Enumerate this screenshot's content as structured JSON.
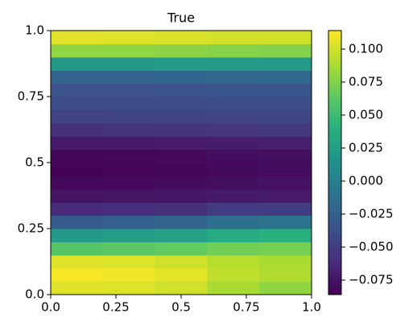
{
  "chart_data": {
    "type": "heatmap",
    "title": "True",
    "colormap": "viridis",
    "xedges": [
      0,
      0.2,
      0.4,
      0.6,
      0.8,
      1
    ],
    "yedges": [
      0,
      0.05,
      0.1,
      0.15,
      0.2,
      0.25,
      0.3,
      0.35,
      0.4,
      0.45,
      0.5,
      0.55,
      0.6,
      0.65,
      0.7,
      0.75,
      0.8,
      0.85,
      0.9,
      0.95,
      1
    ],
    "values": [
      [
        0.105,
        0.104,
        0.1,
        0.088,
        0.08
      ],
      [
        0.112,
        0.11,
        0.106,
        0.095,
        0.09
      ],
      [
        0.105,
        0.104,
        0.1,
        0.092,
        0.088
      ],
      [
        0.06,
        0.062,
        0.065,
        0.07,
        0.072
      ],
      [
        0.02,
        0.024,
        0.028,
        0.036,
        0.04
      ],
      [
        -0.03,
        -0.026,
        -0.022,
        -0.014,
        -0.01
      ],
      [
        -0.062,
        -0.06,
        -0.058,
        -0.052,
        -0.05
      ],
      [
        -0.076,
        -0.075,
        -0.074,
        -0.072,
        -0.071
      ],
      [
        -0.082,
        -0.081,
        -0.08,
        -0.078,
        -0.077
      ],
      [
        -0.085,
        -0.084,
        -0.083,
        -0.081,
        -0.08
      ],
      [
        -0.083,
        -0.082,
        -0.081,
        -0.079,
        -0.078
      ],
      [
        -0.072,
        -0.072,
        -0.071,
        -0.07,
        -0.069
      ],
      [
        -0.058,
        -0.057,
        -0.056,
        -0.055,
        -0.054
      ],
      [
        -0.047,
        -0.046,
        -0.046,
        -0.045,
        -0.044
      ],
      [
        -0.041,
        -0.041,
        -0.04,
        -0.039,
        -0.039
      ],
      [
        -0.036,
        -0.036,
        -0.035,
        -0.034,
        -0.034
      ],
      [
        -0.022,
        -0.022,
        -0.021,
        -0.02,
        -0.019
      ],
      [
        0.02,
        0.02,
        0.021,
        0.022,
        0.023
      ],
      [
        0.08,
        0.08,
        0.079,
        0.077,
        0.076
      ],
      [
        0.105,
        0.104,
        0.103,
        0.101,
        0.1
      ]
    ],
    "xlim": [
      0,
      1
    ],
    "ylim": [
      0,
      1
    ],
    "xticks": [
      {
        "value": 0,
        "label": "0.0"
      },
      0.25,
      0.5,
      0.75,
      {
        "value": 1,
        "label": "1.0"
      }
    ],
    "yticks": [
      {
        "value": 0,
        "label": "0.0"
      },
      0.25,
      0.5,
      0.75,
      {
        "value": 1,
        "label": "1.0"
      }
    ],
    "clim": [
      -0.086,
      0.114
    ],
    "cticks": [
      {
        "value": -0.075,
        "label": "−0.075"
      },
      {
        "value": -0.05,
        "label": "−0.050"
      },
      {
        "value": -0.025,
        "label": "−0.025"
      },
      {
        "value": 0,
        "label": "0.000"
      },
      {
        "value": 0.025,
        "label": "0.025"
      },
      {
        "value": 0.05,
        "label": "0.050"
      },
      {
        "value": 0.075,
        "label": "0.075"
      },
      {
        "value": 0.1,
        "label": "0.100"
      }
    ]
  }
}
